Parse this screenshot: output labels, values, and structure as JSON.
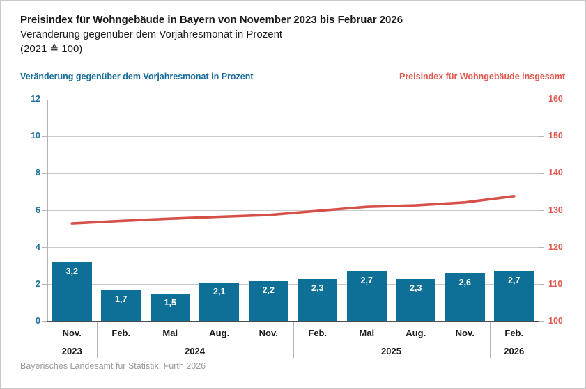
{
  "header": {
    "title": "Preisindex für Wohngebäude in Bayern von November 2023 bis Februar 2026",
    "subtitle": "Veränderung gegenüber dem Vorjahresmonat in Prozent",
    "basis": "(2021 ≙ 100)"
  },
  "footer": {
    "source": "Bayerisches Landesamt für Statistik, Fürth 2026"
  },
  "colors": {
    "bar_fill": "#0e7096",
    "left_axis_text": "#1e6f9b",
    "line_stroke": "#d6504a",
    "right_axis_text": "#e2584e"
  },
  "chart_data": {
    "type": "bar",
    "subtype": "combo-bar-line-dual-axis",
    "categories": [
      "Nov.",
      "Feb.",
      "Mai",
      "Aug.",
      "Nov.",
      "Feb.",
      "Mai",
      "Aug.",
      "Nov.",
      "Feb."
    ],
    "year_groups": [
      {
        "label": "2023",
        "from": 0,
        "to": 0
      },
      {
        "label": "2024",
        "from": 1,
        "to": 4
      },
      {
        "label": "2025",
        "from": 5,
        "to": 8
      },
      {
        "label": "2026",
        "from": 9,
        "to": 9
      }
    ],
    "series": [
      {
        "name": "Veränderung gegenüber dem Vorjahresmonat in Prozent",
        "type": "bar",
        "axis": "left",
        "values": [
          3.2,
          1.7,
          1.5,
          2.1,
          2.2,
          2.3,
          2.7,
          2.3,
          2.6,
          2.7
        ],
        "labels": [
          "3,2",
          "1,7",
          "1,5",
          "2,1",
          "2,2",
          "2,3",
          "2,7",
          "2,3",
          "2,6",
          "2,7"
        ]
      },
      {
        "name": "Preisindex für Wohngebäude insgesamt",
        "type": "line",
        "axis": "right",
        "values": [
          126.5,
          127.2,
          127.8,
          128.3,
          128.8,
          129.9,
          131.0,
          131.4,
          132.2,
          133.9
        ]
      }
    ],
    "left_axis": {
      "min": 0,
      "max": 12,
      "ticks": [
        0,
        2,
        4,
        6,
        8,
        10,
        12
      ]
    },
    "right_axis": {
      "min": 100,
      "max": 160,
      "ticks": [
        100,
        110,
        120,
        130,
        140,
        150,
        160
      ]
    },
    "grid": true,
    "legend_position": "top"
  }
}
